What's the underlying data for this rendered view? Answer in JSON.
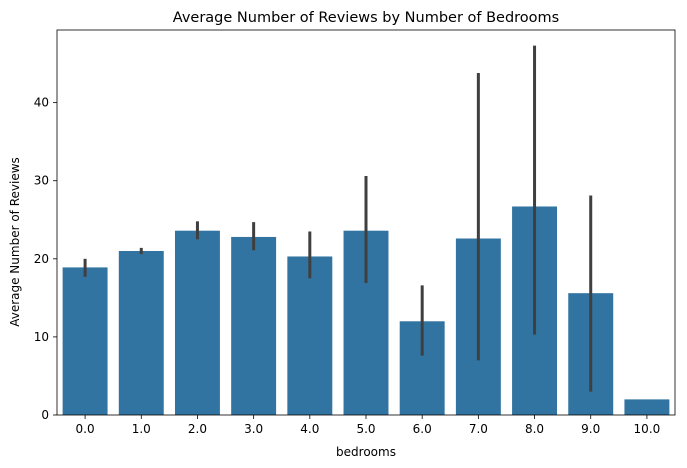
{
  "chart_data": {
    "type": "bar",
    "title": "Average Number of Reviews by Number of Bedrooms",
    "xlabel": "bedrooms",
    "ylabel": "Average Number of Reviews",
    "categories": [
      "0.0",
      "1.0",
      "2.0",
      "3.0",
      "4.0",
      "5.0",
      "6.0",
      "7.0",
      "8.0",
      "9.0",
      "10.0"
    ],
    "values": [
      18.9,
      21.0,
      23.6,
      22.8,
      20.3,
      23.6,
      12.0,
      22.6,
      26.7,
      15.6,
      2.0
    ],
    "error_bars": [
      [
        17.7,
        20.0
      ],
      [
        20.6,
        21.4
      ],
      [
        22.5,
        24.8
      ],
      [
        21.1,
        24.7
      ],
      [
        17.5,
        23.5
      ],
      [
        16.9,
        30.6
      ],
      [
        7.6,
        16.6
      ],
      [
        7.0,
        43.8
      ],
      [
        10.3,
        47.3
      ],
      [
        3.0,
        28.1
      ],
      [
        2.0,
        2.0
      ]
    ],
    "ylim": [
      0,
      49.3
    ],
    "yticks": [
      0,
      10,
      20,
      30,
      40
    ],
    "grid": false,
    "colors": {
      "bar": "#3274a1",
      "errorbar": "#3f3f3f"
    }
  }
}
